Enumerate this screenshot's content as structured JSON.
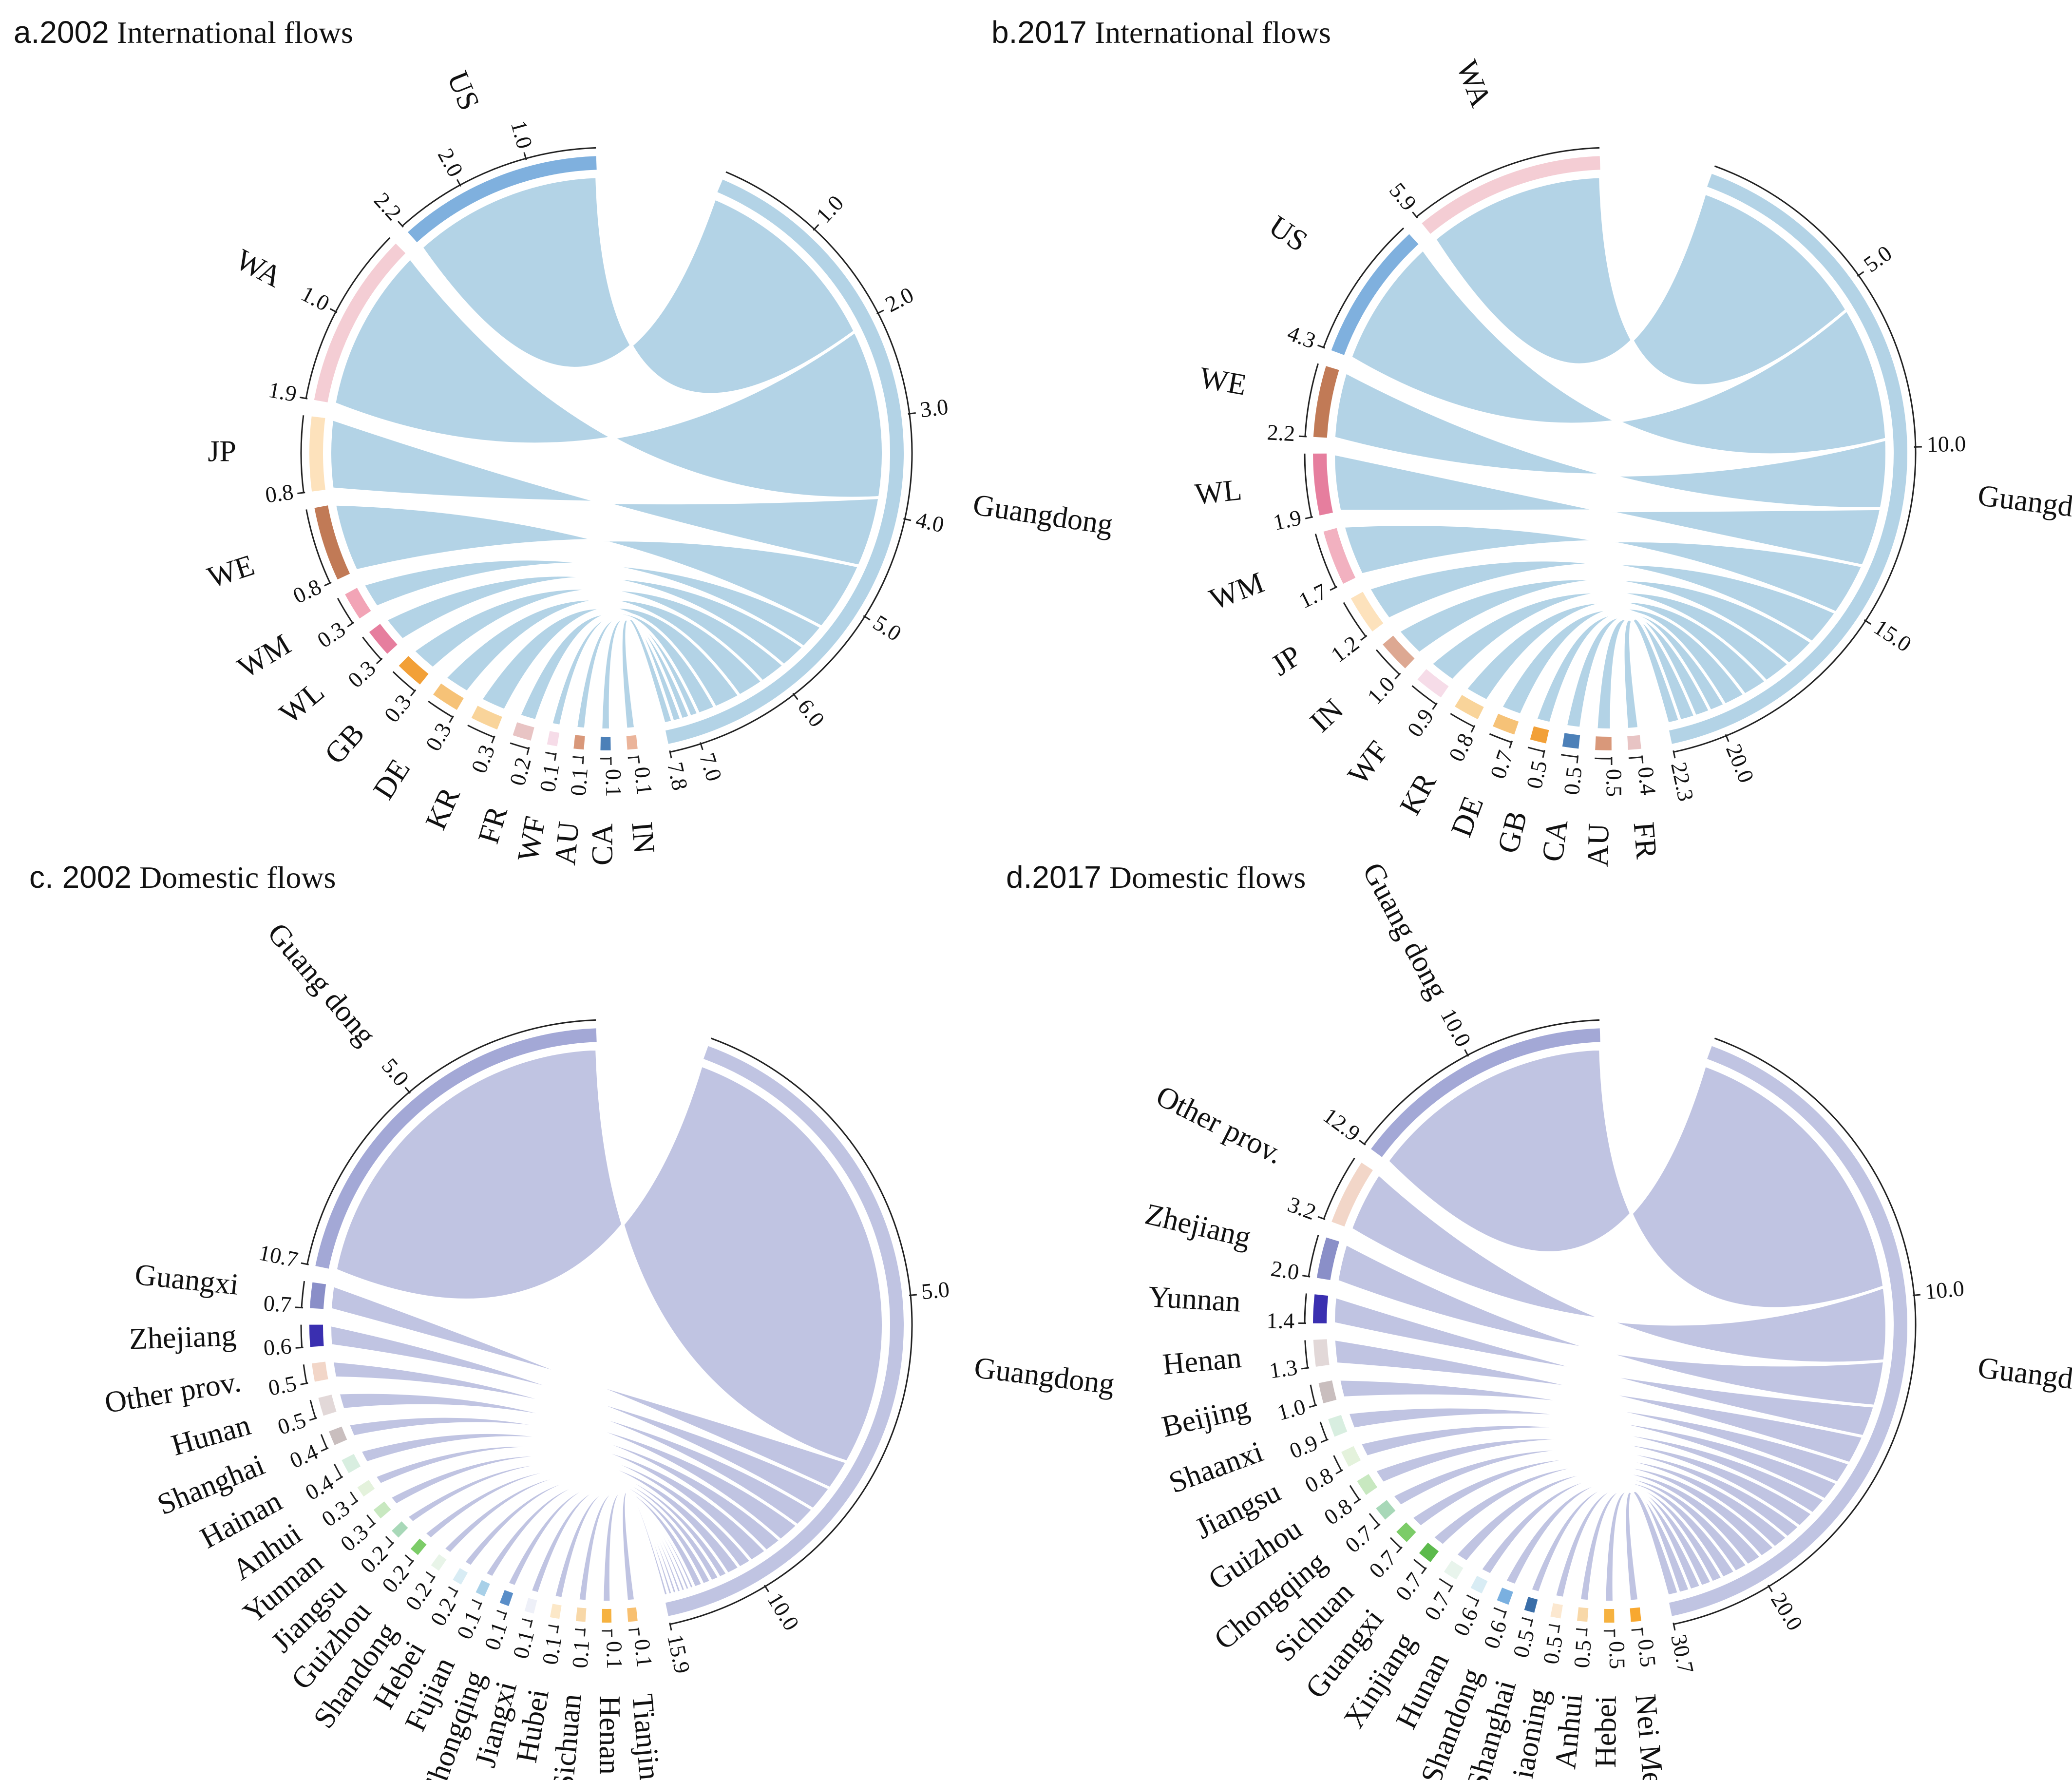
{
  "chart_data": [
    {
      "id": "a",
      "type": "chord",
      "title_prefix": "a.2002",
      "title_rest": " International flows",
      "hub": {
        "name": "Guangdong",
        "color": "#b3d3e6",
        "total": 7.8,
        "ticks": [
          "1.0",
          "2.0",
          "3.0",
          "4.0",
          "5.0",
          "6.0",
          "7.0"
        ],
        "total_label": "7.8"
      },
      "partners": [
        {
          "name": "US",
          "value": 2.2,
          "color": "#7fb0de",
          "value_label": "2.2",
          "ticks": [
            "1.0",
            "2.0"
          ]
        },
        {
          "name": "WA",
          "value": 1.9,
          "color": "#f4cdd4",
          "value_label": "1.9",
          "ticks": [
            "1.0"
          ]
        },
        {
          "name": "JP",
          "value": 0.8,
          "color": "#fde2bc",
          "value_label": "0.8"
        },
        {
          "name": "WE",
          "value": 0.8,
          "color": "#c17a56",
          "value_label": "0.8"
        },
        {
          "name": "WM",
          "value": 0.3,
          "color": "#f2a4b6",
          "value_label": "0.3"
        },
        {
          "name": "WL",
          "value": 0.3,
          "color": "#e67e9e",
          "value_label": "0.3"
        },
        {
          "name": "GB",
          "value": 0.3,
          "color": "#f2a038",
          "value_label": "0.3"
        },
        {
          "name": "DE",
          "value": 0.3,
          "color": "#f6c277",
          "value_label": "0.3"
        },
        {
          "name": "KR",
          "value": 0.3,
          "color": "#f9d49a",
          "value_label": "0.3"
        },
        {
          "name": "FR",
          "value": 0.2,
          "color": "#e8c4c4",
          "value_label": "0.2"
        },
        {
          "name": "WF",
          "value": 0.1,
          "color": "#f6dce8",
          "value_label": "0.1"
        },
        {
          "name": "AU",
          "value": 0.1,
          "color": "#d9987a",
          "value_label": "0.1"
        },
        {
          "name": "CA",
          "value": 0.1,
          "color": "#4c80b8",
          "value_label": "0.1"
        },
        {
          "name": "IN",
          "value": 0.1,
          "color": "#ebb49a",
          "value_label": "0.1"
        }
      ]
    },
    {
      "id": "b",
      "type": "chord",
      "title_prefix": "b.2017",
      "title_rest": " International flows",
      "hub": {
        "name": "Guangdong",
        "color": "#b3d3e6",
        "total": 22.3,
        "ticks": [
          "5.0",
          "10.0",
          "15.0",
          "20.0"
        ],
        "total_label": "22.3"
      },
      "partners": [
        {
          "name": "WA",
          "value": 5.9,
          "color": "#f4cdd4",
          "value_label": "5.9"
        },
        {
          "name": "US",
          "value": 4.3,
          "color": "#7fb0de",
          "value_label": "4.3"
        },
        {
          "name": "WE",
          "value": 2.2,
          "color": "#c17a56",
          "value_label": "2.2"
        },
        {
          "name": "WL",
          "value": 1.9,
          "color": "#e67e9e",
          "value_label": "1.9"
        },
        {
          "name": "WM",
          "value": 1.7,
          "color": "#f2b1c0",
          "value_label": "1.7"
        },
        {
          "name": "JP",
          "value": 1.2,
          "color": "#fde2bc",
          "value_label": "1.2"
        },
        {
          "name": "IN",
          "value": 1.0,
          "color": "#dda892",
          "value_label": "1.0"
        },
        {
          "name": "WF",
          "value": 0.9,
          "color": "#f6dce8",
          "value_label": "0.9"
        },
        {
          "name": "KR",
          "value": 0.8,
          "color": "#f9d49a",
          "value_label": "0.8"
        },
        {
          "name": "DE",
          "value": 0.7,
          "color": "#f6c277",
          "value_label": "0.7"
        },
        {
          "name": "GB",
          "value": 0.5,
          "color": "#f2a038",
          "value_label": "0.5"
        },
        {
          "name": "CA",
          "value": 0.5,
          "color": "#4c80b8",
          "value_label": "0.5"
        },
        {
          "name": "AU",
          "value": 0.5,
          "color": "#d9987a",
          "value_label": "0.5"
        },
        {
          "name": "FR",
          "value": 0.4,
          "color": "#e8c4c4",
          "value_label": "0.4"
        }
      ]
    },
    {
      "id": "c",
      "type": "chord",
      "title_prefix": "c. 2002",
      "title_rest": " Domestic flows",
      "hub": {
        "name": "Guangdong",
        "color": "#c0c4e2",
        "total": 15.9,
        "ticks": [
          "5.0",
          "10.0"
        ],
        "total_label": "15.9"
      },
      "partners": [
        {
          "name": "Guang dong",
          "value": 10.7,
          "color": "#a3a8d6",
          "value_label": "10.7",
          "ticks": [
            "5.0"
          ]
        },
        {
          "name": "Guangxi",
          "value": 0.7,
          "color": "#8a8fc8",
          "value_label": "0.7"
        },
        {
          "name": "Zhejiang",
          "value": 0.6,
          "color": "#3a2fb0",
          "value_label": "0.6"
        },
        {
          "name": "Other prov.",
          "value": 0.5,
          "color": "#f2d6c8",
          "value_label": "0.5"
        },
        {
          "name": "Hunan",
          "value": 0.5,
          "color": "#e2d8d8",
          "value_label": "0.5"
        },
        {
          "name": "Shanghai",
          "value": 0.4,
          "color": "#c9bebe",
          "value_label": "0.4"
        },
        {
          "name": "Hainan",
          "value": 0.4,
          "color": "#d8eee0",
          "value_label": "0.4"
        },
        {
          "name": "Anhui",
          "value": 0.3,
          "color": "#e4f2dc",
          "value_label": "0.3"
        },
        {
          "name": "Yunnan",
          "value": 0.3,
          "color": "#c8e8c0",
          "value_label": "0.3"
        },
        {
          "name": "Jiangsu",
          "value": 0.2,
          "color": "#a8d8b8",
          "value_label": "0.2"
        },
        {
          "name": "Guizhou",
          "value": 0.2,
          "color": "#7ccc68",
          "value_label": "0.2"
        },
        {
          "name": "Shandong",
          "value": 0.2,
          "color": "#e8f4e8",
          "value_label": "0.2"
        },
        {
          "name": "Hebei",
          "value": 0.2,
          "color": "#d8ecf4",
          "value_label": "0.2"
        },
        {
          "name": "Fujian",
          "value": 0.1,
          "color": "#a8d0e8",
          "value_label": "0.1"
        },
        {
          "name": "Chongqing",
          "value": 0.1,
          "color": "#5a8ec8",
          "value_label": "0.1"
        },
        {
          "name": "Jiangxi",
          "value": 0.1,
          "color": "#eef0f8",
          "value_label": "0.1"
        },
        {
          "name": "Hubei",
          "value": 0.1,
          "color": "#fce8c8",
          "value_label": "0.1"
        },
        {
          "name": "Sichuan",
          "value": 0.1,
          "color": "#f8d8a8",
          "value_label": "0.1"
        },
        {
          "name": "Henan",
          "value": 0.1,
          "color": "#f6b240",
          "value_label": "0.1"
        },
        {
          "name": "Tianjin",
          "value": 0.1,
          "color": "#f8c070",
          "value_label": "0.1"
        }
      ]
    },
    {
      "id": "d",
      "type": "chord",
      "title_prefix": "d.2017",
      "title_rest": " Domestic flows",
      "hub": {
        "name": "Guangdong",
        "color": "#c0c4e2",
        "total": 30.7,
        "ticks": [
          "10.0",
          "20.0"
        ],
        "total_label": "30.7"
      },
      "partners": [
        {
          "name": "Guang dong",
          "value": 12.9,
          "color": "#a3a8d6",
          "value_label": "12.9",
          "ticks": [
            "10.0"
          ]
        },
        {
          "name": "Other prov.",
          "value": 3.2,
          "color": "#f2d6c8",
          "value_label": "3.2"
        },
        {
          "name": "Zhejiang",
          "value": 2.0,
          "color": "#8a8fc8",
          "value_label": "2.0"
        },
        {
          "name": "Yunnan",
          "value": 1.4,
          "color": "#3a2fb0",
          "value_label": "1.4"
        },
        {
          "name": "Henan",
          "value": 1.3,
          "color": "#e2d8d8",
          "value_label": "1.3"
        },
        {
          "name": "Beijing",
          "value": 1.0,
          "color": "#c9bebe",
          "value_label": "1.0"
        },
        {
          "name": "Shaanxi",
          "value": 0.9,
          "color": "#d8eee0",
          "value_label": "0.9"
        },
        {
          "name": "Jiangsu",
          "value": 0.8,
          "color": "#e4f2dc",
          "value_label": "0.8"
        },
        {
          "name": "Guizhou",
          "value": 0.8,
          "color": "#c8e8c0",
          "value_label": "0.8"
        },
        {
          "name": "Chongqing",
          "value": 0.7,
          "color": "#a8d8b8",
          "value_label": "0.7"
        },
        {
          "name": "Sichuan",
          "value": 0.7,
          "color": "#7ccc68",
          "value_label": "0.7"
        },
        {
          "name": "Guangxi",
          "value": 0.7,
          "color": "#5cba4c",
          "value_label": "0.7"
        },
        {
          "name": "Xinjiang",
          "value": 0.7,
          "color": "#e8f4ec",
          "value_label": "0.7"
        },
        {
          "name": "Hunan",
          "value": 0.6,
          "color": "#d8ecf4",
          "value_label": "0.6"
        },
        {
          "name": "Shandong",
          "value": 0.6,
          "color": "#7ab0e0",
          "value_label": "0.6"
        },
        {
          "name": "Shanghai",
          "value": 0.5,
          "color": "#3a6ea8",
          "value_label": "0.5"
        },
        {
          "name": "Liaoning",
          "value": 0.5,
          "color": "#fce8d0",
          "value_label": "0.5"
        },
        {
          "name": "Anhui",
          "value": 0.5,
          "color": "#f8d8a8",
          "value_label": "0.5"
        },
        {
          "name": "Hebei",
          "value": 0.5,
          "color": "#f6b240",
          "value_label": "0.5"
        },
        {
          "name": "Nei Menggu",
          "value": 0.5,
          "color": "#f8a830",
          "value_label": "0.5"
        }
      ]
    }
  ]
}
